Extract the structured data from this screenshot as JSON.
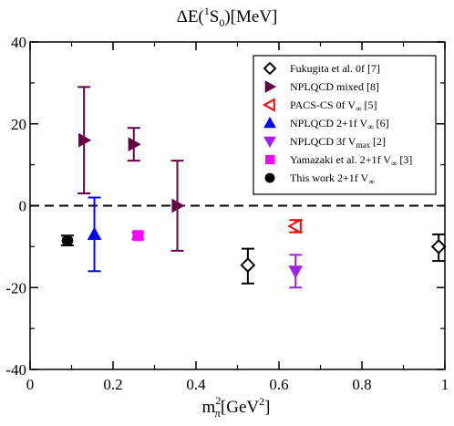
{
  "chart_data": {
    "type": "scatter",
    "title_main": "ΔE(",
    "title_sup": "1",
    "title_mid": "S",
    "title_sub": "0",
    "title_tail": ")[MeV]",
    "xlabel_main": "m",
    "xlabel_sub": "π",
    "xlabel_sup": "2",
    "xlabel_tail": "[GeV",
    "xlabel_sup2": "2",
    "xlabel_end": "]",
    "xlim": [
      0,
      1.0
    ],
    "ylim": [
      -40,
      40
    ],
    "x_ticks": [
      {
        "value": 0,
        "label": "0"
      },
      {
        "value": 0.2,
        "label": "0.2"
      },
      {
        "value": 0.4,
        "label": "0.4"
      },
      {
        "value": 0.6,
        "label": "0.6"
      },
      {
        "value": 0.8,
        "label": "0.8"
      },
      {
        "value": 1.0,
        "label": "1"
      }
    ],
    "y_ticks": [
      {
        "value": -40,
        "label": "-40"
      },
      {
        "value": -20,
        "label": "-20"
      },
      {
        "value": 0,
        "label": "0"
      },
      {
        "value": 20,
        "label": "20"
      },
      {
        "value": 40,
        "label": "40"
      }
    ],
    "reference_line": {
      "y": 0,
      "style": "dashed"
    },
    "legend_position": "top-right",
    "series": [
      {
        "name": "Fukugita et al. 0f [7]",
        "name_parts": [
          "Fukugita et al. 0f [7]"
        ],
        "marker": "diamond-open",
        "color": "#000000",
        "points": [
          {
            "x": 0.525,
            "y": -14.5,
            "yerr_low": 4.5,
            "yerr_high": 4.0
          },
          {
            "x": 0.985,
            "y": -10.0,
            "yerr_low": 3.5,
            "yerr_high": 3.0
          }
        ]
      },
      {
        "name": "NPLQCD mixed [8]",
        "name_parts": [
          "NPLQCD mixed [8]"
        ],
        "marker": "triangle-right",
        "color": "#660044",
        "points": [
          {
            "x": 0.13,
            "y": 16.0,
            "yerr_low": 13.0,
            "yerr_high": 13.0
          },
          {
            "x": 0.25,
            "y": 15.0,
            "yerr_low": 4.0,
            "yerr_high": 4.0
          },
          {
            "x": 0.355,
            "y": 0.0,
            "yerr_low": 11.0,
            "yerr_high": 11.0
          }
        ]
      },
      {
        "name": "PACS-CS 0f V∞ [5]",
        "name_parts": [
          "PACS-CS 0f V",
          "∞",
          " [5]"
        ],
        "marker": "triangle-left-open",
        "color": "#ff0000",
        "points": [
          {
            "x": 0.64,
            "y": -5.0,
            "yerr_low": 1.5,
            "yerr_high": 1.5
          }
        ]
      },
      {
        "name": "NPLQCD 2+1f V∞ [6]",
        "name_parts": [
          "NPLQCD 2+1f V",
          "∞",
          " [6]"
        ],
        "marker": "triangle-up",
        "color": "#0000ff",
        "points": [
          {
            "x": 0.155,
            "y": -7.0,
            "yerr_low": 9.0,
            "yerr_high": 9.0
          }
        ]
      },
      {
        "name": "NPLQCD 3f Vmax [2]",
        "name_parts": [
          "NPLQCD 3f V",
          "max",
          " [2]"
        ],
        "marker": "triangle-down",
        "color": "#a020f0",
        "points": [
          {
            "x": 0.64,
            "y": -16.0,
            "yerr_low": 4.0,
            "yerr_high": 4.0
          }
        ]
      },
      {
        "name": "Yamazaki et al. 2+1f V∞ [3]",
        "name_parts": [
          "Yamazaki et al. 2+1f V",
          "∞",
          " [3]"
        ],
        "marker": "square",
        "color": "#ff00ff",
        "points": [
          {
            "x": 0.26,
            "y": -7.3,
            "yerr_low": 0.8,
            "yerr_high": 0.8
          }
        ]
      },
      {
        "name": "This work 2+1f V∞",
        "name_parts": [
          "This work 2+1f V",
          "∞",
          ""
        ],
        "marker": "circle",
        "color": "#000000",
        "points": [
          {
            "x": 0.09,
            "y": -8.5,
            "yerr_low": 1.2,
            "yerr_high": 1.2
          }
        ]
      }
    ]
  }
}
